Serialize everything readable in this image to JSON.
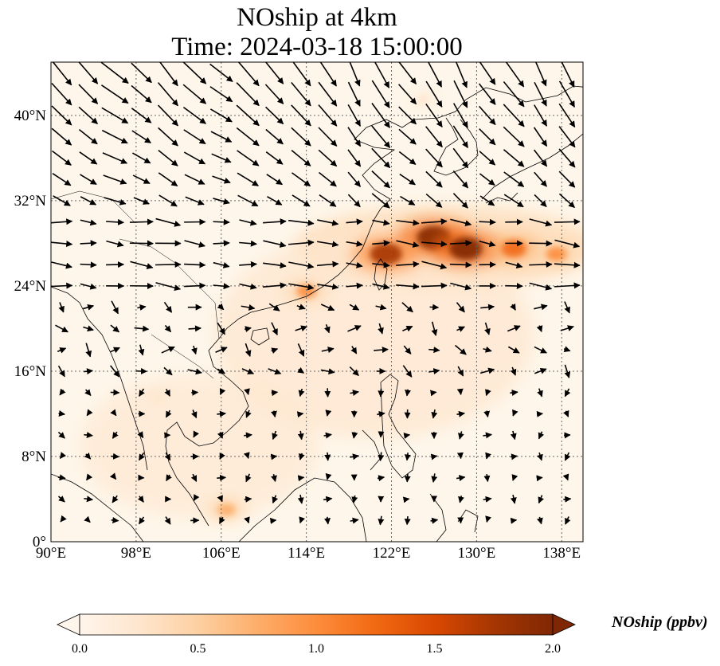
{
  "title": "NOship at 4km",
  "subtitle": "Time: 2024-03-18 15:00:00",
  "map": {
    "lon_range": [
      90,
      140
    ],
    "lat_range": [
      0,
      45
    ],
    "lon_ticks": [
      {
        "value": 90,
        "label": "90°E"
      },
      {
        "value": 98,
        "label": "98°E"
      },
      {
        "value": 106,
        "label": "106°E"
      },
      {
        "value": 114,
        "label": "114°E"
      },
      {
        "value": 122,
        "label": "122°E"
      },
      {
        "value": 130,
        "label": "130°E"
      },
      {
        "value": 138,
        "label": "138°E"
      }
    ],
    "lat_ticks": [
      {
        "value": 0,
        "label": "0°"
      },
      {
        "value": 8,
        "label": "8°N"
      },
      {
        "value": 16,
        "label": "16°N"
      },
      {
        "value": 24,
        "label": "24°N"
      },
      {
        "value": 32,
        "label": "32°N"
      },
      {
        "value": 40,
        "label": "40°N"
      }
    ],
    "gridlines": true,
    "field_variable": "NOship",
    "hotspots": [
      {
        "lon": 126.0,
        "lat": 28.5,
        "value": 2.0
      },
      {
        "lon": 129.0,
        "lat": 27.5,
        "value": 1.9
      },
      {
        "lon": 121.5,
        "lat": 27.0,
        "value": 1.8
      },
      {
        "lon": 133.5,
        "lat": 27.5,
        "value": 1.3
      },
      {
        "lon": 137.5,
        "lat": 27.0,
        "value": 1.0
      },
      {
        "lon": 114.0,
        "lat": 23.5,
        "value": 0.9
      },
      {
        "lon": 106.5,
        "lat": 3.0,
        "value": 0.8
      },
      {
        "lon": 125.0,
        "lat": 41.5,
        "value": 0.3
      },
      {
        "lon": 100.0,
        "lat": 13.5,
        "value": 0.3
      }
    ],
    "wind_vectors": "regular lon/lat grid of arrows; strong northwesterly flow north of 30°N, westerly near 28°N, weak and variable in the tropics"
  },
  "colorbar": {
    "label": "NOship (ppbv)",
    "min": 0.0,
    "max": 2.0,
    "ticks": [
      "0.0",
      "0.5",
      "1.0",
      "1.5",
      "2.0"
    ],
    "colormap": [
      "#fff5eb",
      "#fee6ce",
      "#fdd0a2",
      "#fdae6b",
      "#fd8d3c",
      "#f16913",
      "#d94801",
      "#a63603",
      "#7f2704"
    ]
  },
  "colors": {
    "background": "#fef6ea",
    "coastline": "#000000",
    "grid": "#666666"
  }
}
